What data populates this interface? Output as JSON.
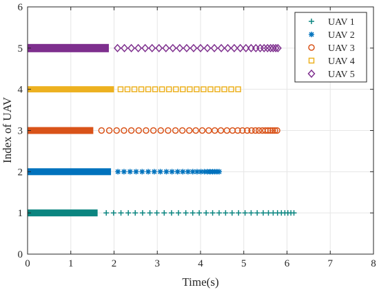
{
  "chart_data": {
    "type": "scatter",
    "xlabel": "Time(s)",
    "ylabel": "Index of UAV",
    "xlim": [
      0,
      8
    ],
    "ylim": [
      0,
      6
    ],
    "xticks": [
      0,
      1,
      2,
      3,
      4,
      5,
      6,
      7,
      8
    ],
    "yticks": [
      0,
      1,
      2,
      3,
      4,
      5,
      6
    ],
    "grid": true,
    "legend_position": "top-right",
    "series": [
      {
        "name": "UAV 1",
        "y": 1,
        "marker": "plus",
        "color": "#0b8580",
        "dense_range": [
          0,
          1.62
        ],
        "x": [
          1.82,
          1.99,
          2.16,
          2.33,
          2.49,
          2.66,
          2.83,
          2.99,
          3.16,
          3.33,
          3.49,
          3.66,
          3.82,
          3.97,
          4.13,
          4.28,
          4.43,
          4.58,
          4.73,
          4.88,
          5.03,
          5.17,
          5.31,
          5.45,
          5.57,
          5.68,
          5.78,
          5.87,
          5.95,
          6.02,
          6.09,
          6.16
        ]
      },
      {
        "name": "UAV 2",
        "y": 2,
        "marker": "asterisk",
        "color": "#0072bd",
        "dense_range": [
          0,
          1.93
        ],
        "x": [
          2.09,
          2.23,
          2.37,
          2.51,
          2.65,
          2.79,
          2.93,
          3.07,
          3.21,
          3.34,
          3.47,
          3.59,
          3.71,
          3.82,
          3.92,
          4.01,
          4.09,
          4.16,
          4.22,
          4.28,
          4.33,
          4.38,
          4.43
        ]
      },
      {
        "name": "UAV 3",
        "y": 3,
        "marker": "circle",
        "color": "#d95319",
        "dense_range": [
          0,
          1.52
        ],
        "x": [
          1.71,
          1.89,
          2.06,
          2.23,
          2.4,
          2.57,
          2.74,
          2.91,
          3.08,
          3.25,
          3.42,
          3.58,
          3.74,
          3.89,
          4.04,
          4.19,
          4.33,
          4.47,
          4.61,
          4.74,
          4.86,
          4.97,
          5.08,
          5.18,
          5.27,
          5.35,
          5.43,
          5.5,
          5.56,
          5.62,
          5.67,
          5.72,
          5.77
        ]
      },
      {
        "name": "UAV 4",
        "y": 4,
        "marker": "square",
        "color": "#edb120",
        "dense_range": [
          0,
          2.0
        ],
        "x": [
          2.15,
          2.31,
          2.47,
          2.63,
          2.79,
          2.95,
          3.11,
          3.27,
          3.43,
          3.59,
          3.75,
          3.91,
          4.07,
          4.23,
          4.39,
          4.55,
          4.71,
          4.87
        ]
      },
      {
        "name": "UAV 5",
        "y": 5,
        "marker": "diamond",
        "color": "#7e2f8e",
        "dense_range": [
          0,
          1.88
        ],
        "x": [
          2.08,
          2.24,
          2.4,
          2.56,
          2.72,
          2.88,
          3.04,
          3.2,
          3.36,
          3.52,
          3.68,
          3.84,
          4.0,
          4.16,
          4.32,
          4.48,
          4.63,
          4.78,
          4.92,
          5.05,
          5.17,
          5.28,
          5.38,
          5.47,
          5.55,
          5.62,
          5.68,
          5.74,
          5.79
        ]
      }
    ]
  }
}
